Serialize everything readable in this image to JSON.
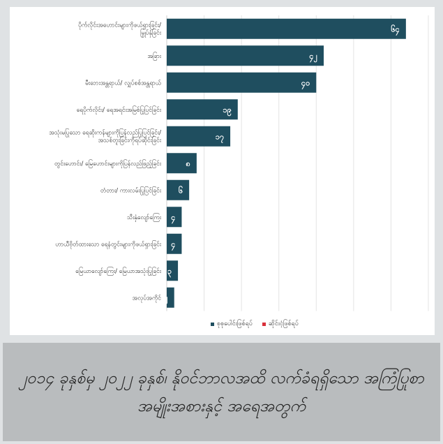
{
  "chart_data": {
    "type": "bar",
    "orientation": "horizontal",
    "categories": [
      "ပိုက်လိုင်းအဟောင်းများကိုဖယ်ရှားခြင်း/ မြှုပ်နှံခြင်း",
      "အခြား",
      "မီးဘေးအန္တရာယ်/ လျှပ်စစ်အန္တရာယ်",
      "ရေပိုက်လိုင်း/ ရေအရင်းအမြစ်ပြုပြင်ခြင်း",
      "အသုံးမပြုသော ရေဆိုးကန်များကိုပြန်လည်ပြုပြင်ခြင်း/ အသစ်တူးခြင်းကိုရပ်ဆိုင်းခြင်း",
      "တွင်းဟောင်း/ မြေဟောင်းများကိုပြန်လည်ဖြည့်ခြင်း",
      "တံတား/ ကားလမ်းပြုပြင်ခြင်း",
      "သီးနှံလျော်ကြေး",
      "ဟာယီဗိုတ်ထားသော ရေနံတွင်းများကိုဖယ်ရှားခြင်း",
      "မြေယာလျော်ကြေး/ မြေယာအသုံးပြုခြင်း",
      "အလုပ်အကိုင်"
    ],
    "series": [
      {
        "name": "စုစုပေါင်းဖြစ်ရပ်",
        "color": "#1f4e5f",
        "values": [
          64,
          42,
          40,
          19,
          17,
          8,
          6,
          4,
          4,
          3,
          2
        ],
        "data_labels": [
          "၆၄",
          "၄၂",
          "၄၀",
          "၁၉",
          "၁၇",
          "၈",
          "၆",
          "၄",
          "၄",
          "၃",
          "၂"
        ]
      },
      {
        "name": "ဆိုင်းငံ့ဖြစ်ရပ်",
        "color": "#d9303a",
        "values": [
          0,
          0,
          0,
          0,
          0,
          0,
          0,
          0,
          0,
          0,
          0
        ]
      }
    ],
    "xlim": [
      0,
      70
    ],
    "grid": true,
    "legend_position": "bottom"
  },
  "caption": "၂၀၁၄ ခုနှစ်မှ ၂၀၂၂ ခုနှစ်၊ နိုဝင်ဘာလအထိ လက်ခံရရှိသော အကြံပြုစာအမျိုးအစားနှင့် အရေအတွက်"
}
